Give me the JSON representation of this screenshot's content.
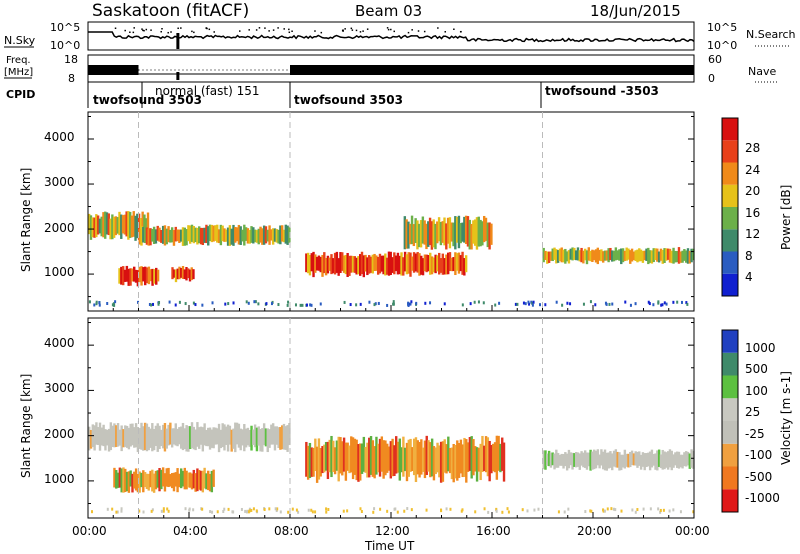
{
  "header": {
    "station": "Saskatoon (fitACF)",
    "beam": "Beam 03",
    "date": "18/Jun/2015"
  },
  "noise_panel": {
    "left_label": "N.Sky",
    "left_ticks": [
      "10^5",
      "10^0"
    ],
    "right_label": "N.Search",
    "right_ticks": [
      "10^5",
      "10^0"
    ]
  },
  "freq_panel": {
    "left_label_1": "Freq.",
    "left_label_2": "[MHz]",
    "left_ticks": [
      "18",
      "8"
    ],
    "right_label": "Nave",
    "right_ticks": [
      "60",
      "0"
    ]
  },
  "cpid": {
    "label": "CPID",
    "segments": [
      {
        "name": "twofsound 3503",
        "start_hour": 0,
        "end_hour": 2
      },
      {
        "name": "normal (fast) 151",
        "start_hour": 2,
        "end_hour": 8
      },
      {
        "name": "twofsound 3503",
        "start_hour": 8,
        "end_hour": 18
      },
      {
        "name": "twofsound -3503",
        "start_hour": 18,
        "end_hour": 24
      }
    ]
  },
  "x_axis": {
    "label": "Time UT",
    "ticks": [
      "00:00",
      "04:00",
      "08:00",
      "12:00",
      "16:00",
      "20:00",
      "00:00"
    ]
  },
  "power_panel": {
    "ylabel": "Slant Range [km]",
    "yticks": [
      "1000",
      "2000",
      "3000",
      "4000"
    ],
    "colorbar_label": "Power [dB]",
    "colorbar_ticks": [
      "4",
      "8",
      "12",
      "16",
      "20",
      "24",
      "28"
    ]
  },
  "velocity_panel": {
    "ylabel": "Slant Range [km]",
    "yticks": [
      "1000",
      "2000",
      "3000",
      "4000"
    ],
    "colorbar_label": "Velocity [m s-1]",
    "colorbar_ticks": [
      "1000",
      "500",
      "100",
      "25",
      "-25",
      "-100",
      "-500",
      "-1000"
    ]
  },
  "colors": {
    "power_scale": [
      "#1020d0",
      "#2a5cc0",
      "#3f8a6a",
      "#6cb04a",
      "#e6c21a",
      "#f08a1a",
      "#e8401a",
      "#d81010"
    ],
    "velocity_scale": [
      "#2040c0",
      "#3f8a6a",
      "#5cc040",
      "#c8c8c0",
      "#c0c0b8",
      "#f0a040",
      "#f07820",
      "#e01818"
    ]
  },
  "chart_data": [
    {
      "type": "heatmap",
      "title": "Power",
      "xlabel": "Time UT",
      "ylabel": "Slant Range [km]",
      "xlim": [
        0,
        24
      ],
      "ylim": [
        180,
        4600
      ],
      "colorbar": {
        "label": "Power [dB]",
        "range": [
          0,
          32
        ]
      },
      "echo_regions": [
        {
          "t_start": 0.0,
          "t_end": 2.4,
          "range_km": [
            1700,
            2400
          ],
          "power_db": 16
        },
        {
          "t_start": 1.2,
          "t_end": 2.8,
          "range_km": [
            700,
            1200
          ],
          "power_db": 28
        },
        {
          "t_start": 3.3,
          "t_end": 4.2,
          "range_km": [
            800,
            1200
          ],
          "power_db": 28
        },
        {
          "t_start": 2.0,
          "t_end": 8.0,
          "range_km": [
            1600,
            2100
          ],
          "power_db": 16
        },
        {
          "t_start": 8.6,
          "t_end": 15.0,
          "range_km": [
            900,
            1500
          ],
          "power_db": 26
        },
        {
          "t_start": 12.5,
          "t_end": 16.0,
          "range_km": [
            1500,
            2300
          ],
          "power_db": 16
        },
        {
          "t_start": 18.0,
          "t_end": 24.0,
          "range_km": [
            1200,
            1600
          ],
          "power_db": 18
        }
      ]
    },
    {
      "type": "heatmap",
      "title": "Velocity",
      "xlabel": "Time UT",
      "ylabel": "Slant Range [km]",
      "xlim": [
        0,
        24
      ],
      "ylim": [
        180,
        4600
      ],
      "colorbar": {
        "label": "Velocity [m s-1]",
        "range": [
          -1000,
          1000
        ]
      },
      "echo_regions": [
        {
          "t_start": 0.0,
          "t_end": 8.0,
          "range_km": [
            1600,
            2300
          ],
          "velocity": 0
        },
        {
          "t_start": 1.0,
          "t_end": 5.0,
          "range_km": [
            700,
            1300
          ],
          "velocity": -300
        },
        {
          "t_start": 8.6,
          "t_end": 16.5,
          "range_km": [
            900,
            2000
          ],
          "velocity": -300
        },
        {
          "t_start": 18.0,
          "t_end": 24.0,
          "range_km": [
            1200,
            1700
          ],
          "velocity": 0
        }
      ]
    }
  ]
}
